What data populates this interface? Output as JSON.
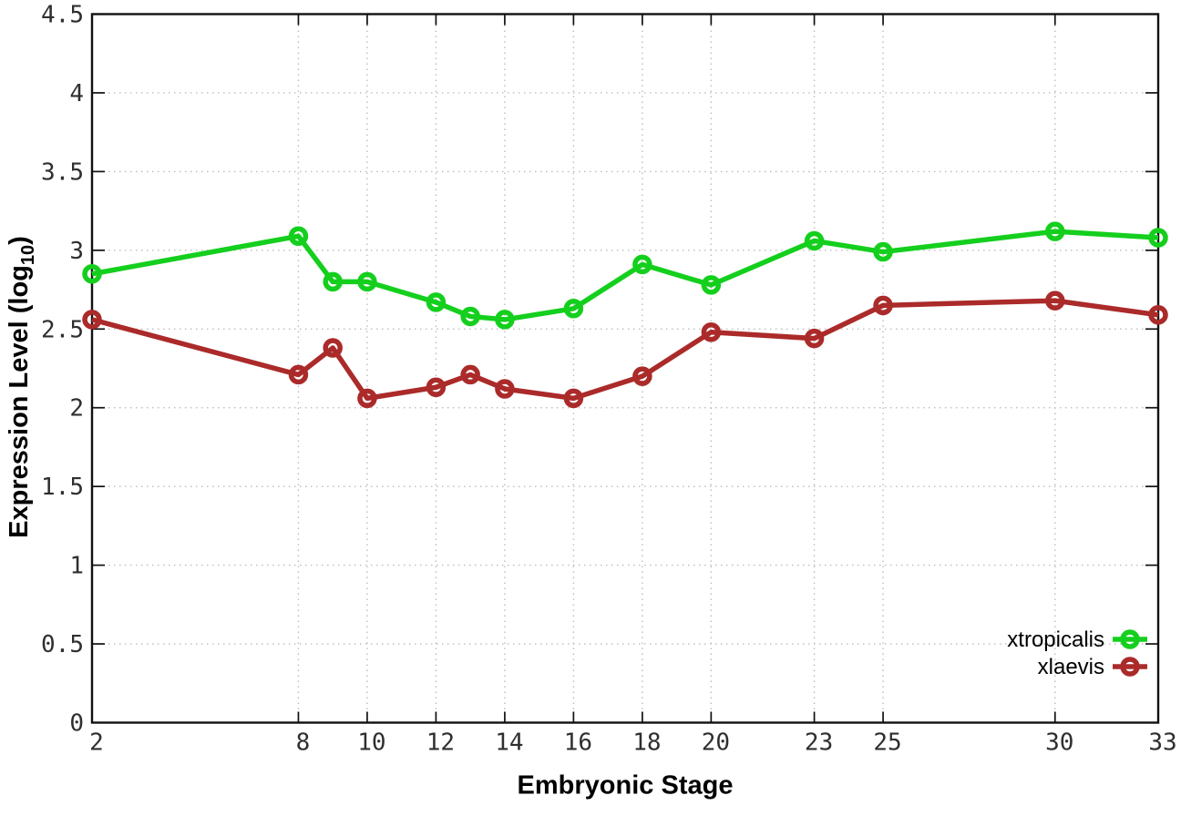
{
  "chart_data": {
    "type": "line",
    "title": "",
    "xlabel": "Embryonic Stage",
    "ylabel": "Expression Level (log10)",
    "ylabel_prefix": "Expression Level (log",
    "ylabel_sub": "10",
    "ylabel_suffix": ")",
    "x": [
      2,
      8,
      9,
      10,
      12,
      13,
      14,
      16,
      18,
      20,
      23,
      25,
      30,
      33
    ],
    "xticks": [
      2,
      8,
      10,
      12,
      14,
      16,
      18,
      20,
      23,
      25,
      30,
      33
    ],
    "yticks": [
      0,
      0.5,
      1,
      1.5,
      2,
      2.5,
      3,
      3.5,
      4,
      4.5
    ],
    "xlim": [
      2,
      33
    ],
    "ylim": [
      0,
      4.5
    ],
    "grid": true,
    "legend_position": "inside-bottom-right",
    "series": [
      {
        "name": "xtropicalis",
        "color": "#14cf1d",
        "values": [
          2.85,
          3.09,
          2.8,
          2.8,
          2.67,
          2.58,
          2.56,
          2.63,
          2.91,
          2.78,
          3.06,
          2.99,
          3.12,
          3.08
        ]
      },
      {
        "name": "xlaevis",
        "color": "#ab2a2a",
        "values": [
          2.56,
          2.21,
          2.38,
          2.06,
          2.13,
          2.21,
          2.12,
          2.06,
          2.2,
          2.48,
          2.44,
          2.65,
          2.68,
          2.59
        ]
      }
    ],
    "colors": {
      "grid": "#bdbdbd",
      "axis": "#111111",
      "tick_label": "#2f2f2f"
    }
  }
}
